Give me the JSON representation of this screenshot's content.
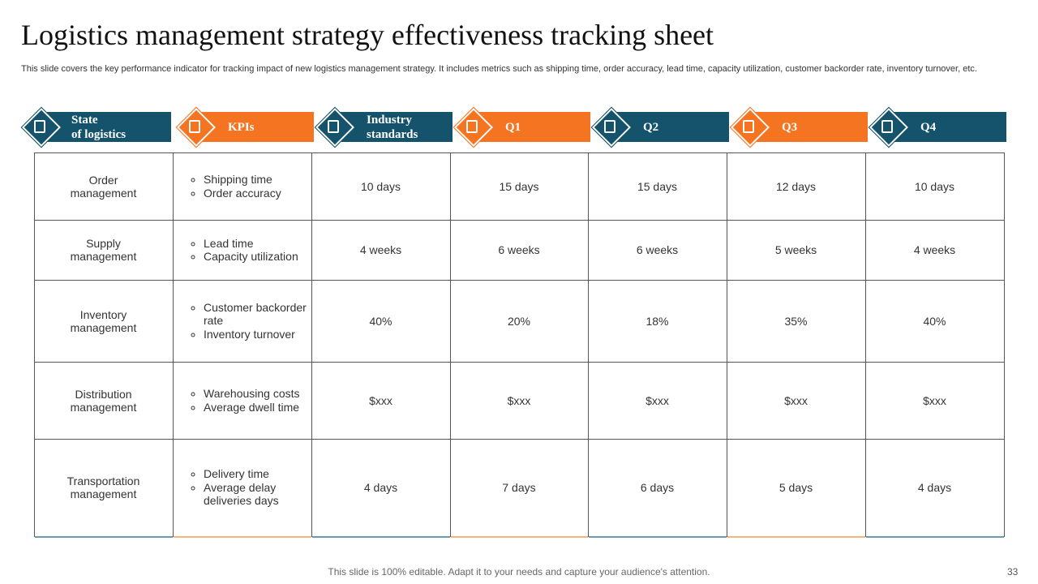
{
  "title": "Logistics management strategy effectiveness tracking sheet",
  "subtitle": "This slide covers the key performance indicator for tracking impact of new logistics management strategy. It includes metrics such as shipping time, order accuracy, lead time, capacity utilization, customer backorder rate, inventory turnover, etc.",
  "table": {
    "headers": [
      [
        "State",
        "of logistics"
      ],
      [
        "KPIs"
      ],
      [
        "Industry",
        "standards"
      ],
      [
        "Q1"
      ],
      [
        "Q2"
      ],
      [
        "Q3"
      ],
      [
        "Q4"
      ]
    ],
    "rows": [
      {
        "label": "Order management",
        "kpis": [
          "Shipping time",
          "Order accuracy"
        ],
        "values": [
          "10 days",
          "15 days",
          "15 days",
          "12 days",
          "10 days"
        ]
      },
      {
        "label": "Supply management",
        "kpis": [
          "Lead time",
          "Capacity utilization"
        ],
        "values": [
          "4 weeks",
          "6 weeks",
          "6 weeks",
          "5 weeks",
          "4 weeks"
        ]
      },
      {
        "label": "Inventory management",
        "kpis": [
          "Customer backorder rate",
          "Inventory turnover"
        ],
        "values": [
          "40%",
          "20%",
          "18%",
          "35%",
          "40%"
        ]
      },
      {
        "label": "Distribution management",
        "kpis": [
          "Warehousing costs",
          "Average dwell time"
        ],
        "values": [
          "$xxx",
          "$xxx",
          "$xxx",
          "$xxx",
          "$xxx"
        ]
      },
      {
        "label": "Transportation management",
        "kpis": [
          "Delivery time",
          "Average delay deliveries days"
        ],
        "values": [
          "4 days",
          "7 days",
          "6 days",
          "5 days",
          "4 days"
        ]
      }
    ]
  },
  "footer": "This slide is 100% editable. Adapt it to your needs and capture your audience's attention.",
  "page_number": "33"
}
